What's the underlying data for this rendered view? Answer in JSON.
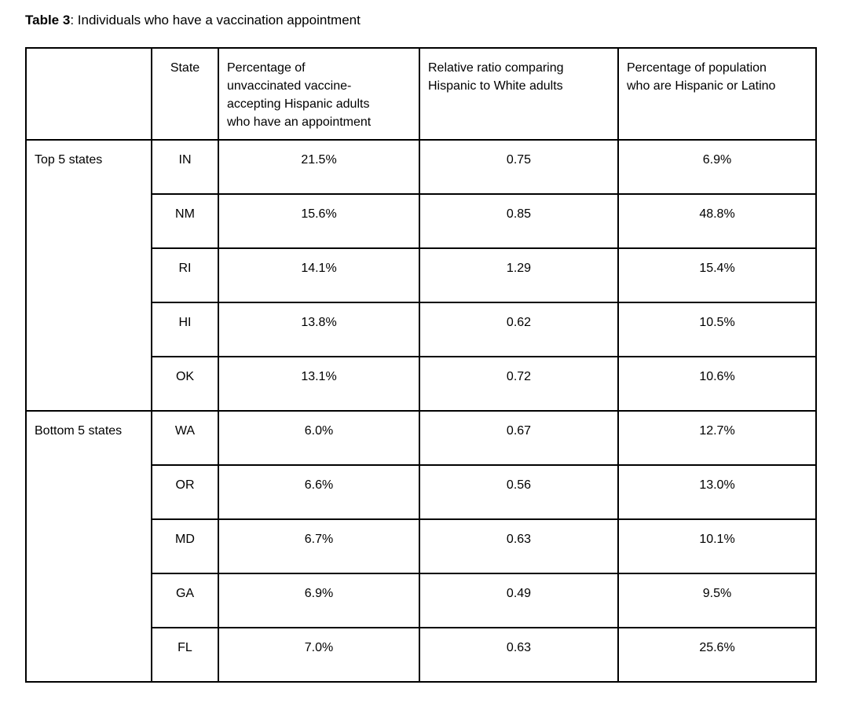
{
  "title": {
    "label": "Table 3",
    "rest": ": Individuals who have a vaccination appointment"
  },
  "table": {
    "headers": {
      "group": "",
      "state": "State",
      "pct_appointment": "Percentage of\nunvaccinated vaccine-\naccepting Hispanic adults\nwho have an appointment",
      "relative_ratio": "Relative ratio comparing\nHispanic to White adults",
      "pct_population": "Percentage of population\nwho are Hispanic or Latino"
    },
    "groups": [
      {
        "label": "Top 5 states",
        "rows": [
          {
            "state": "IN",
            "pct": "21.5%",
            "ratio": "0.75",
            "pop": "6.9%"
          },
          {
            "state": "NM",
            "pct": "15.6%",
            "ratio": "0.85",
            "pop": "48.8%"
          },
          {
            "state": "RI",
            "pct": "14.1%",
            "ratio": "1.29",
            "pop": "15.4%"
          },
          {
            "state": "HI",
            "pct": "13.8%",
            "ratio": "0.62",
            "pop": "10.5%"
          },
          {
            "state": "OK",
            "pct": "13.1%",
            "ratio": "0.72",
            "pop": "10.6%"
          }
        ]
      },
      {
        "label": "Bottom 5 states",
        "rows": [
          {
            "state": "WA",
            "pct": "6.0%",
            "ratio": "0.67",
            "pop": "12.7%"
          },
          {
            "state": "OR",
            "pct": "6.6%",
            "ratio": "0.56",
            "pop": "13.0%"
          },
          {
            "state": "MD",
            "pct": "6.7%",
            "ratio": "0.63",
            "pop": "10.1%"
          },
          {
            "state": "GA",
            "pct": "6.9%",
            "ratio": "0.49",
            "pop": "9.5%"
          },
          {
            "state": "FL",
            "pct": "7.0%",
            "ratio": "0.63",
            "pop": "25.6%"
          }
        ]
      }
    ]
  }
}
